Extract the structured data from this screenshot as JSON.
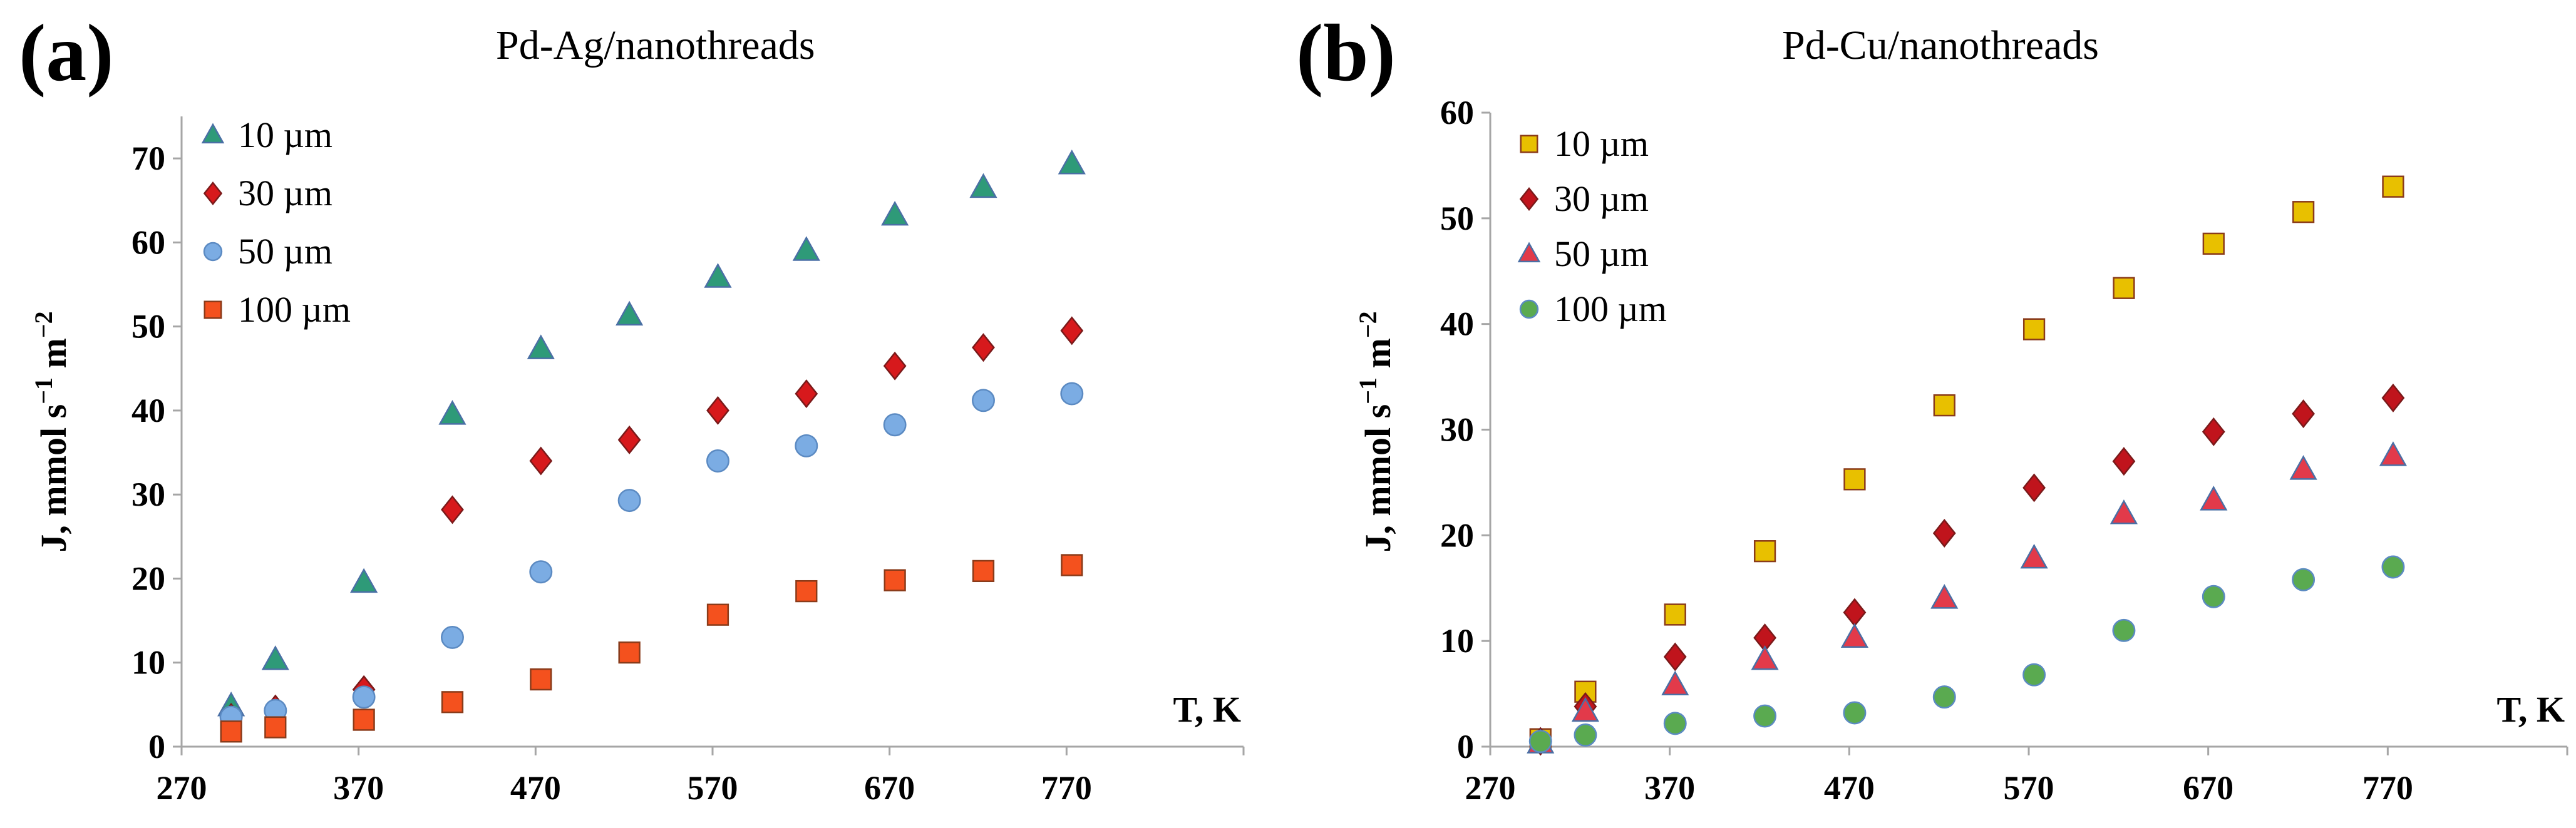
{
  "chart_data": [
    {
      "type": "scatter",
      "panel_label": "(a)",
      "title": "Pd-Ag/nanothreads",
      "xlabel": "T, K",
      "ylabel_main": "J, mmol s",
      "ylabel_exp1": "−1",
      "ylabel_mid": " m",
      "ylabel_exp2": "−2",
      "xlim": [
        270,
        870
      ],
      "ylim": [
        0,
        75
      ],
      "xticks": [
        270,
        370,
        470,
        570,
        670,
        770
      ],
      "yticks": [
        0,
        10,
        20,
        30,
        40,
        50,
        60,
        70
      ],
      "grid": false,
      "legend_position": "top-left",
      "series": [
        {
          "name": "10 µm",
          "marker": "triangle",
          "color": "#2e9a78",
          "x": [
            298,
            323,
            373,
            423,
            473,
            523,
            573,
            623,
            673,
            723,
            773
          ],
          "y": [
            4.8,
            10.3,
            19.5,
            39.5,
            47.3,
            51.3,
            55.8,
            59.0,
            63.2,
            66.5,
            69.3
          ]
        },
        {
          "name": "30 µm",
          "marker": "diamond",
          "color": "#d7191c",
          "x": [
            298,
            323,
            373,
            423,
            473,
            523,
            573,
            623,
            673,
            723,
            773
          ],
          "y": [
            3.5,
            4.5,
            6.8,
            28.2,
            34.0,
            36.5,
            40.0,
            42.0,
            45.3,
            47.5,
            49.5
          ]
        },
        {
          "name": "50 µm",
          "marker": "circle",
          "color": "#7bace3",
          "x": [
            298,
            323,
            373,
            423,
            473,
            523,
            573,
            623,
            673,
            723,
            773
          ],
          "y": [
            3.5,
            4.3,
            5.9,
            13.0,
            20.8,
            29.3,
            34.0,
            35.8,
            38.3,
            41.2,
            42.0
          ]
        },
        {
          "name": "100 µm",
          "marker": "square",
          "color": "#f4511e",
          "x": [
            298,
            323,
            373,
            423,
            473,
            523,
            573,
            623,
            673,
            723,
            773
          ],
          "y": [
            1.8,
            2.3,
            3.2,
            5.3,
            8.0,
            11.2,
            15.7,
            18.5,
            19.8,
            20.9,
            21.6
          ]
        }
      ]
    },
    {
      "type": "scatter",
      "panel_label": "(b)",
      "title": "Pd-Cu/nanothreads",
      "xlabel": "T, K",
      "ylabel_main": "J, mmol s",
      "ylabel_exp1": "−1",
      "ylabel_mid": " m",
      "ylabel_exp2": "−2",
      "xlim": [
        270,
        870
      ],
      "ylim": [
        0,
        60
      ],
      "xticks": [
        270,
        370,
        470,
        570,
        670,
        770
      ],
      "yticks": [
        0,
        10,
        20,
        30,
        40,
        50,
        60
      ],
      "grid": false,
      "legend_position": "top-left",
      "series": [
        {
          "name": "10 µm",
          "marker": "square",
          "color": "#e8c000",
          "x": [
            298,
            323,
            373,
            423,
            473,
            523,
            573,
            623,
            673,
            723,
            773
          ],
          "y": [
            0.7,
            5.2,
            12.5,
            18.5,
            25.3,
            32.3,
            39.5,
            43.4,
            47.6,
            50.6,
            53.0
          ]
        },
        {
          "name": "30 µm",
          "marker": "diamond",
          "color": "#c0141c",
          "x": [
            298,
            323,
            373,
            423,
            473,
            523,
            573,
            623,
            673,
            723,
            773
          ],
          "y": [
            0.5,
            3.8,
            8.5,
            10.3,
            12.7,
            20.2,
            24.5,
            27.0,
            29.8,
            31.5,
            33.0
          ]
        },
        {
          "name": "50 µm",
          "marker": "triangle",
          "color": "#e23a4a",
          "x": [
            298,
            323,
            373,
            423,
            473,
            523,
            573,
            623,
            673,
            723,
            773
          ],
          "y": [
            0.3,
            3.3,
            5.8,
            8.2,
            10.3,
            14.0,
            17.8,
            22.0,
            23.3,
            26.2,
            27.5
          ]
        },
        {
          "name": "100 µm",
          "marker": "circle",
          "color": "#5aaa50",
          "x": [
            298,
            323,
            373,
            423,
            473,
            523,
            573,
            623,
            673,
            723,
            773
          ],
          "y": [
            0.5,
            1.1,
            2.2,
            2.9,
            3.2,
            4.7,
            6.8,
            11.0,
            14.2,
            15.8,
            17.0
          ]
        }
      ]
    }
  ]
}
